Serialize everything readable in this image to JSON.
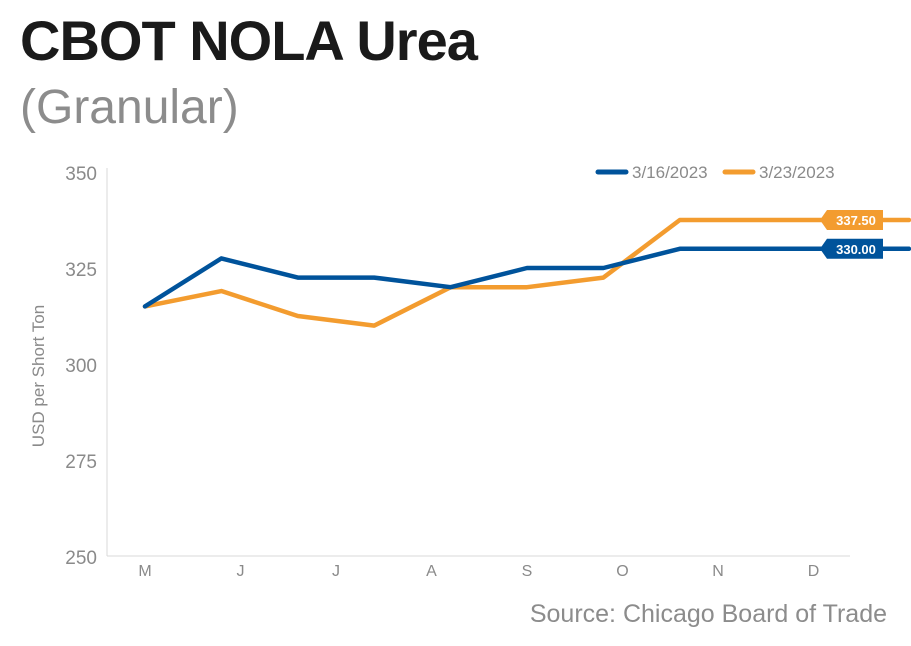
{
  "title": "CBOT NOLA Urea",
  "subtitle": "(Granular)",
  "source": "Source: Chicago Board of Trade",
  "chart_data": {
    "type": "line",
    "title": "CBOT NOLA Urea",
    "subtitle": "(Granular)",
    "xlabel": "",
    "ylabel": "USD per Short Ton",
    "categories": [
      "M",
      "J",
      "J",
      "A",
      "S",
      "O",
      "N",
      "D"
    ],
    "ylim": [
      250,
      350
    ],
    "yticks": [
      250,
      275,
      300,
      325,
      350
    ],
    "grid": false,
    "legend_position": "top-right",
    "x": [
      0,
      0.8,
      1.6,
      2.4,
      3.2,
      4.0,
      4.8,
      5.6,
      6.4,
      7.2,
      8.0
    ],
    "series": [
      {
        "name": "3/16/2023",
        "color": "#00539b",
        "values": [
          315,
          327.5,
          322.5,
          322.5,
          320,
          325,
          325,
          330,
          330,
          330,
          330
        ],
        "end_label": "330.00"
      },
      {
        "name": "3/23/2023",
        "color": "#f39c2f",
        "values": [
          315,
          319,
          312.5,
          310,
          320,
          320,
          322.5,
          337.5,
          337.5,
          337.5,
          337.5
        ],
        "end_label": "337.50"
      }
    ]
  }
}
